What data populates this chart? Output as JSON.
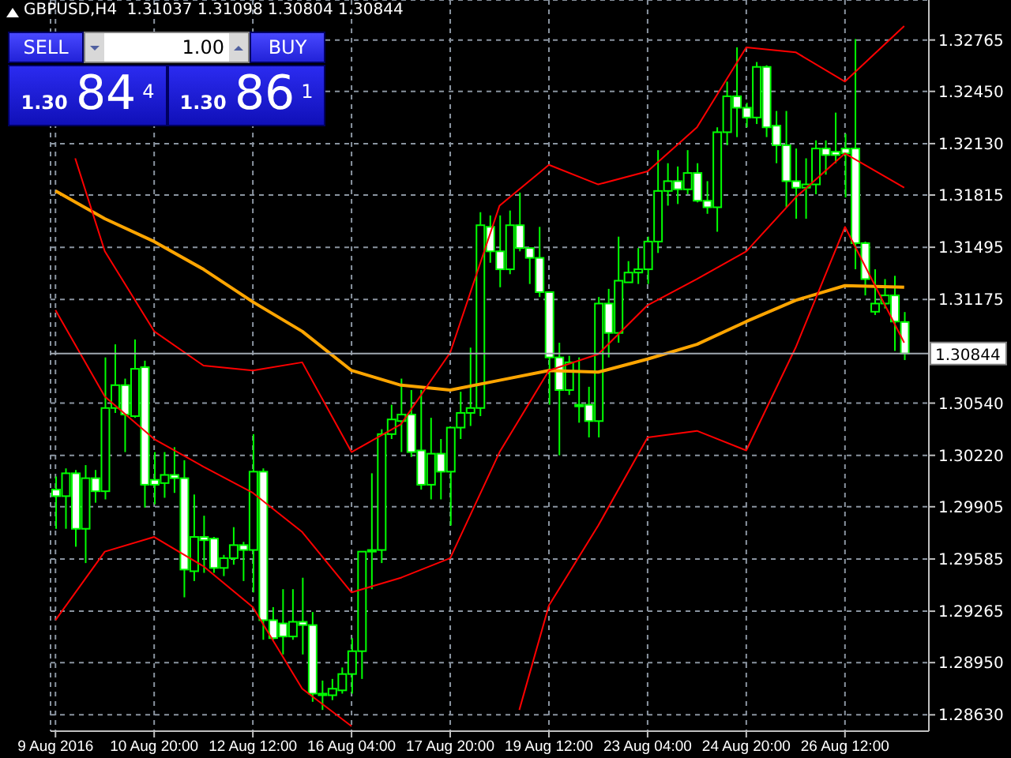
{
  "chart_data": {
    "type": "candlestick",
    "title": "GBPUSD,H4  1.31037 1.31098 1.30804 1.30844",
    "categories": [
      "9 Aug 2016",
      null,
      null,
      null,
      null,
      null,
      null,
      null,
      null,
      null,
      "10 Aug 20:00",
      null,
      null,
      null,
      null,
      null,
      null,
      null,
      null,
      null,
      "12 Aug 12:00",
      null,
      null,
      null,
      null,
      null,
      null,
      null,
      null,
      null,
      "16 Aug 04:00",
      null,
      null,
      null,
      null,
      null,
      null,
      null,
      null,
      null,
      "17 Aug 20:00",
      null,
      null,
      null,
      null,
      null,
      null,
      null,
      null,
      null,
      "19 Aug 12:00",
      null,
      null,
      null,
      null,
      null,
      null,
      null,
      null,
      null,
      "23 Aug 04:00",
      null,
      null,
      null,
      null,
      null,
      null,
      null,
      null,
      null,
      "24 Aug 20:00",
      null,
      null,
      null,
      null,
      null,
      null,
      null,
      null,
      null,
      "26 Aug 12:00",
      null,
      null,
      null,
      null,
      null,
      null
    ],
    "ohlc": [
      [
        1.3001,
        1.3009,
        1.2977,
        1.2997
      ],
      [
        1.2997,
        1.3014,
        1.2977,
        1.3011
      ],
      [
        1.3011,
        1.3013,
        1.2966,
        1.2977
      ],
      [
        1.2977,
        1.3016,
        1.2956,
        1.3008
      ],
      [
        1.3008,
        1.3013,
        1.2993,
        1.3
      ],
      [
        1.3,
        1.3082,
        1.2995,
        1.3051
      ],
      [
        1.3051,
        1.309,
        1.3048,
        1.3065
      ],
      [
        1.3065,
        1.3069,
        1.3024,
        1.3047
      ],
      [
        1.3046,
        1.3093,
        1.3045,
        1.3075
      ],
      [
        1.3076,
        1.308,
        1.299,
        1.3004
      ],
      [
        1.3007,
        1.3024,
        1.2992,
        1.3004
      ],
      [
        1.3005,
        1.3024,
        1.2996,
        1.301
      ],
      [
        1.301,
        1.3027,
        1.2999,
        1.3008
      ],
      [
        1.3008,
        1.3019,
        1.2935,
        1.2952
      ],
      [
        1.2951,
        1.2998,
        1.2945,
        1.2972
      ],
      [
        1.2972,
        1.2985,
        1.295,
        1.297
      ],
      [
        1.2971,
        1.2972,
        1.295,
        1.2953
      ],
      [
        1.2953,
        1.2961,
        1.2948,
        1.2959
      ],
      [
        1.2959,
        1.2978,
        1.2955,
        1.2967
      ],
      [
        1.2967,
        1.2969,
        1.2945,
        1.2964
      ],
      [
        1.2964,
        1.3035,
        1.2938,
        1.3012
      ],
      [
        1.3012,
        1.3014,
        1.2909,
        1.2921
      ],
      [
        1.2921,
        1.2929,
        1.2909,
        1.291
      ],
      [
        1.2919,
        1.294,
        1.29,
        1.2911
      ],
      [
        1.2911,
        1.294,
        1.2909,
        1.292
      ],
      [
        1.292,
        1.2947,
        1.29,
        1.2918
      ],
      [
        1.2918,
        1.2926,
        1.2871,
        1.2876
      ],
      [
        1.2875,
        1.2884,
        1.2866,
        1.2876
      ],
      [
        1.2875,
        1.2885,
        1.2872,
        1.2879
      ],
      [
        1.2878,
        1.2892,
        1.2876,
        1.2888
      ],
      [
        1.2888,
        1.291,
        1.2876,
        1.2902
      ],
      [
        1.2902,
        1.2963,
        1.2885,
        1.2963
      ],
      [
        1.2963,
        1.3011,
        1.294,
        1.2964
      ],
      [
        1.2964,
        1.3038,
        1.2956,
        1.3035
      ],
      [
        1.3035,
        1.3053,
        1.3032,
        1.3044
      ],
      [
        1.3043,
        1.3069,
        1.3024,
        1.3047
      ],
      [
        1.3047,
        1.3062,
        1.3021,
        1.3024
      ],
      [
        1.3025,
        1.3062,
        1.3001,
        1.3004
      ],
      [
        1.3004,
        1.3045,
        1.2995,
        1.3023
      ],
      [
        1.3023,
        1.3032,
        1.2995,
        1.3012
      ],
      [
        1.3012,
        1.3039,
        1.2979,
        1.3039
      ],
      [
        1.3039,
        1.3061,
        1.3032,
        1.3048
      ],
      [
        1.3048,
        1.3088,
        1.304,
        1.3051
      ],
      [
        1.3051,
        1.3171,
        1.3046,
        1.3163
      ],
      [
        1.3162,
        1.3169,
        1.314,
        1.3147
      ],
      [
        1.3147,
        1.3169,
        1.3125,
        1.3136
      ],
      [
        1.3136,
        1.3172,
        1.3133,
        1.3163
      ],
      [
        1.3163,
        1.3183,
        1.3147,
        1.3149
      ],
      [
        1.3149,
        1.3149,
        1.3127,
        1.3143
      ],
      [
        1.3143,
        1.3162,
        1.3119,
        1.3122
      ],
      [
        1.3122,
        1.3122,
        1.3053,
        1.3082
      ],
      [
        1.3082,
        1.3091,
        1.3022,
        1.3062
      ],
      [
        1.3062,
        1.3083,
        1.3059,
        1.3079
      ],
      [
        1.3053,
        1.3082,
        1.3042,
        1.3052
      ],
      [
        1.3053,
        1.3064,
        1.3033,
        1.3043
      ],
      [
        1.3043,
        1.3119,
        1.3033,
        1.3115
      ],
      [
        1.3115,
        1.3124,
        1.3082,
        1.3097
      ],
      [
        1.3097,
        1.3156,
        1.3091,
        1.3129
      ],
      [
        1.3128,
        1.3141,
        1.3128,
        1.3134
      ],
      [
        1.3134,
        1.3149,
        1.3127,
        1.3136
      ],
      [
        1.3136,
        1.3156,
        1.3127,
        1.3153
      ],
      [
        1.3153,
        1.3209,
        1.3146,
        1.3184
      ],
      [
        1.3184,
        1.3201,
        1.3175,
        1.319
      ],
      [
        1.319,
        1.3199,
        1.3176,
        1.3185
      ],
      [
        1.3185,
        1.3209,
        1.3182,
        1.3195
      ],
      [
        1.3195,
        1.3201,
        1.3177,
        1.3178
      ],
      [
        1.3178,
        1.319,
        1.317,
        1.3174
      ],
      [
        1.3174,
        1.3223,
        1.3159,
        1.322
      ],
      [
        1.322,
        1.3251,
        1.3212,
        1.3242
      ],
      [
        1.3242,
        1.3272,
        1.3217,
        1.3235
      ],
      [
        1.3235,
        1.3238,
        1.3223,
        1.3229
      ],
      [
        1.3229,
        1.3263,
        1.3225,
        1.326
      ],
      [
        1.326,
        1.3261,
        1.3217,
        1.3223
      ],
      [
        1.3224,
        1.3233,
        1.3201,
        1.3212
      ],
      [
        1.3212,
        1.3233,
        1.3174,
        1.319
      ],
      [
        1.319,
        1.321,
        1.3167,
        1.3186
      ],
      [
        1.3186,
        1.3204,
        1.3167,
        1.3188
      ],
      [
        1.3188,
        1.3215,
        1.3182,
        1.321
      ],
      [
        1.321,
        1.3215,
        1.3194,
        1.3206
      ],
      [
        1.3208,
        1.3232,
        1.3201,
        1.3206
      ],
      [
        1.321,
        1.3219,
        1.318,
        1.3207
      ],
      [
        1.321,
        1.3277,
        1.3136,
        1.3152
      ],
      [
        1.3152,
        1.3153,
        1.312,
        1.313
      ],
      [
        1.311,
        1.3136,
        1.3108,
        1.3115
      ],
      [
        1.3115,
        1.313,
        1.3112,
        1.312
      ],
      [
        1.312,
        1.3132,
        1.3086,
        1.3104
      ],
      [
        1.31037,
        1.31098,
        1.30804,
        1.30844
      ]
    ],
    "color": "#00ff00",
    "series": [
      {
        "type": "line",
        "color": "#ffa500",
        "values": [
          1.3184,
          null,
          null,
          null,
          null,
          1.3167,
          null,
          null,
          null,
          null,
          1.3153,
          null,
          null,
          null,
          null,
          1.3136,
          null,
          null,
          null,
          null,
          1.3116,
          null,
          null,
          null,
          null,
          1.3098,
          null,
          null,
          null,
          null,
          1.3074,
          null,
          null,
          null,
          null,
          1.3065,
          null,
          null,
          null,
          null,
          1.3062,
          null,
          null,
          null,
          null,
          1.3068,
          null,
          null,
          null,
          null,
          1.3074,
          null,
          null,
          null,
          null,
          1.3073,
          null,
          null,
          null,
          null,
          1.3081,
          null,
          null,
          null,
          null,
          1.309,
          null,
          null,
          null,
          null,
          1.3104,
          null,
          null,
          null,
          null,
          1.3117,
          null,
          null,
          null,
          null,
          1.3126,
          null,
          null,
          null,
          null,
          null,
          1.3125
        ]
      },
      {
        "type": "line",
        "color": "#ff0000",
        "values": [
          null,
          null,
          1.3204,
          null,
          null,
          1.3147,
          null,
          null,
          null,
          null,
          1.3098,
          null,
          null,
          null,
          null,
          1.3077,
          null,
          null,
          null,
          null,
          1.3074,
          null,
          null,
          null,
          null,
          1.3079,
          null,
          null,
          null,
          null,
          1.3024,
          null,
          null,
          null,
          null,
          1.3041,
          null,
          null,
          null,
          null,
          1.3085,
          null,
          null,
          null,
          null,
          1.3175,
          null,
          null,
          null,
          null,
          1.32,
          null,
          null,
          null,
          null,
          1.3188,
          null,
          null,
          null,
          null,
          1.3196,
          null,
          null,
          null,
          null,
          1.3223,
          null,
          null,
          null,
          null,
          1.3272,
          null,
          null,
          null,
          null,
          1.3269,
          null,
          null,
          null,
          null,
          1.3251,
          null,
          null,
          null,
          null,
          null,
          1.3285
        ]
      },
      {
        "type": "line",
        "color": "#ff0000",
        "values": [
          1.3111,
          null,
          null,
          null,
          null,
          1.3058,
          null,
          null,
          null,
          null,
          1.3032,
          null,
          null,
          null,
          null,
          1.3015,
          null,
          null,
          null,
          null,
          1.2999,
          null,
          null,
          null,
          null,
          1.2975,
          null,
          null,
          null,
          null,
          1.2938,
          null,
          null,
          null,
          null,
          1.2947,
          null,
          null,
          null,
          null,
          1.2959,
          null,
          null,
          null,
          null,
          1.3024,
          null,
          null,
          null,
          null,
          1.3074,
          null,
          null,
          null,
          null,
          1.3084,
          null,
          null,
          null,
          null,
          1.3114,
          null,
          null,
          null,
          null,
          1.313,
          null,
          null,
          null,
          null,
          1.3147,
          null,
          null,
          null,
          null,
          1.318,
          null,
          null,
          null,
          null,
          1.3207,
          null,
          null,
          null,
          null,
          null,
          1.3186
        ]
      },
      {
        "type": "line",
        "color": "#ff0000",
        "values": [
          1.2921,
          null,
          null,
          null,
          null,
          1.2963,
          null,
          null,
          null,
          null,
          1.2972,
          null,
          null,
          null,
          null,
          1.2954,
          null,
          null,
          null,
          null,
          1.2929,
          null,
          null,
          null,
          null,
          1.2879,
          null,
          null,
          null,
          null,
          1.2856,
          null,
          null,
          null,
          null,
          null,
          null,
          null,
          null,
          null,
          null,
          null,
          null,
          null,
          null,
          null,
          null,
          null,
          null,
          null,
          null,
          null,
          null,
          null,
          null,
          null,
          null,
          null,
          null,
          null,
          null,
          null,
          null,
          null,
          null,
          null,
          null,
          null,
          null,
          null,
          null,
          null,
          null,
          null,
          null,
          null,
          null,
          null,
          null,
          null,
          null,
          null,
          null,
          null,
          null,
          null,
          null
        ]
      },
      {
        "type": "line",
        "color": "#ff0000",
        "values": [
          null,
          null,
          null,
          null,
          null,
          null,
          null,
          null,
          null,
          null,
          null,
          null,
          null,
          null,
          null,
          null,
          null,
          null,
          null,
          null,
          null,
          null,
          null,
          null,
          null,
          null,
          null,
          null,
          null,
          null,
          null,
          null,
          null,
          null,
          null,
          null,
          null,
          null,
          null,
          null,
          null,
          null,
          null,
          null,
          null,
          null,
          null,
          1.2866,
          null,
          null,
          1.293,
          null,
          null,
          null,
          null,
          1.2979,
          null,
          null,
          null,
          null,
          1.3033,
          null,
          null,
          null,
          null,
          1.3037,
          null,
          null,
          null,
          null,
          1.3025,
          null,
          null,
          null,
          null,
          1.3088,
          null,
          null,
          null,
          null,
          1.3162,
          null,
          null,
          null,
          null,
          null,
          1.3091
        ]
      }
    ],
    "ylim": [
      1.2853,
      1.3301
    ],
    "yticks": [
      1.32765,
      {
        "value": 1.3245,
        "label": "1.32450"
      },
      {
        "value": 1.3213,
        "label": "1.32130"
      },
      1.31815,
      1.31495,
      1.31175,
      {
        "value": 1.3054,
        "label": "1.30540"
      },
      {
        "value": 1.3022,
        "label": "1.30220"
      },
      1.29905,
      1.29585,
      1.29265,
      {
        "value": 1.2895,
        "label": "1.28950"
      },
      {
        "value": 1.2863,
        "label": "1.28630"
      }
    ],
    "grid": true,
    "ref_lines": [
      {
        "axis": "y",
        "value": 1.30844,
        "label": "1.30844",
        "color": "#a0a8b0"
      }
    ],
    "annotations": [
      "SELL",
      "1.00",
      "BUY",
      "1.30 84$^{4}$",
      "1.30 86$^{1}$"
    ]
  }
}
